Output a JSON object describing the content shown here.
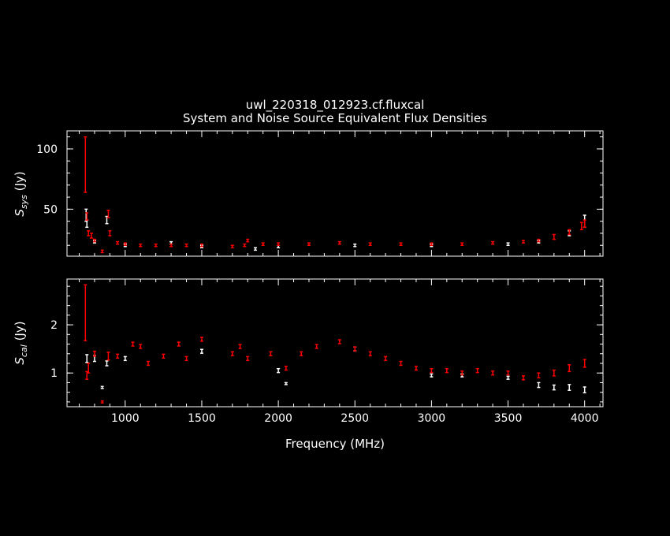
{
  "figure": {
    "title": "uwl_220318_012923.cf.fluxcal",
    "subtitle": "System and Noise Source Equivalent Flux Densities"
  },
  "chart_data": [
    {
      "type": "scatter",
      "panel": "top",
      "ylabel_main": "S",
      "ylabel_sub": "sys",
      "ylabel_unit": "(Jy)",
      "xlim": [
        620,
        4120
      ],
      "ylim": [
        11,
        115
      ],
      "yticks": [
        50,
        100
      ],
      "xticks": [
        1000,
        1500,
        2000,
        2500,
        3000,
        3500,
        4000
      ],
      "x_ticklabels_shown": false,
      "series": [
        {
          "color": "#ff0000",
          "points": [
            [
              740,
              87,
              23
            ],
            [
              750,
              44,
              3
            ],
            [
              760,
              30,
              2
            ],
            [
              780,
              28,
              2
            ],
            [
              800,
              24,
              1
            ],
            [
              850,
              15,
              1
            ],
            [
              890,
              46,
              3
            ],
            [
              900,
              30,
              2
            ],
            [
              950,
              22,
              1
            ],
            [
              1000,
              21,
              1
            ],
            [
              1100,
              20,
              1
            ],
            [
              1200,
              20,
              1
            ],
            [
              1300,
              20,
              1
            ],
            [
              1400,
              20,
              1
            ],
            [
              1500,
              20,
              1
            ],
            [
              1700,
              19,
              1
            ],
            [
              1780,
              20,
              1
            ],
            [
              1800,
              24,
              1
            ],
            [
              1900,
              21,
              1
            ],
            [
              2000,
              21,
              1
            ],
            [
              2200,
              21,
              1
            ],
            [
              2400,
              22,
              1
            ],
            [
              2600,
              21,
              1
            ],
            [
              2800,
              21,
              1
            ],
            [
              3000,
              21,
              1
            ],
            [
              3200,
              21,
              1
            ],
            [
              3400,
              22,
              1
            ],
            [
              3600,
              23,
              1
            ],
            [
              3700,
              24,
              1
            ],
            [
              3800,
              27,
              2
            ],
            [
              3900,
              31,
              2
            ],
            [
              3980,
              36,
              3
            ],
            [
              4000,
              38,
              3
            ]
          ]
        },
        {
          "color": "#ffffff",
          "points": [
            [
              745,
              45,
              5
            ],
            [
              750,
              38,
              3
            ],
            [
              800,
              23,
              1
            ],
            [
              880,
              41,
              3
            ],
            [
              1000,
              20,
              1
            ],
            [
              1300,
              22,
              1
            ],
            [
              1500,
              19,
              1
            ],
            [
              1850,
              17,
              1
            ],
            [
              2000,
              19,
              1
            ],
            [
              2500,
              20,
              1
            ],
            [
              3000,
              20,
              1
            ],
            [
              3500,
              21,
              1
            ],
            [
              3700,
              23,
              1
            ],
            [
              3900,
              30,
              2
            ],
            [
              4000,
              40,
              5
            ]
          ]
        }
      ]
    },
    {
      "type": "scatter",
      "panel": "bottom",
      "ylabel_main": "S",
      "ylabel_sub": "cal",
      "ylabel_unit": "(Jy)",
      "xlabel": "Frequency (MHz)",
      "xlim": [
        620,
        4120
      ],
      "ylim": [
        0.3,
        2.95
      ],
      "yticks": [
        1,
        2
      ],
      "xticks": [
        1000,
        1500,
        2000,
        2500,
        3000,
        3500,
        4000
      ],
      "series": [
        {
          "color": "#ff0000",
          "points": [
            [
              740,
              2.25,
              0.58
            ],
            [
              750,
              0.95,
              0.08
            ],
            [
              760,
              1.1,
              0.1
            ],
            [
              800,
              1.4,
              0.05
            ],
            [
              850,
              0.4,
              0.02
            ],
            [
              890,
              1.35,
              0.08
            ],
            [
              950,
              1.35,
              0.04
            ],
            [
              1050,
              1.6,
              0.04
            ],
            [
              1100,
              1.55,
              0.04
            ],
            [
              1150,
              1.2,
              0.04
            ],
            [
              1250,
              1.35,
              0.04
            ],
            [
              1350,
              1.6,
              0.04
            ],
            [
              1400,
              1.3,
              0.04
            ],
            [
              1500,
              1.7,
              0.04
            ],
            [
              1700,
              1.4,
              0.04
            ],
            [
              1750,
              1.55,
              0.04
            ],
            [
              1800,
              1.3,
              0.04
            ],
            [
              1950,
              1.4,
              0.04
            ],
            [
              2050,
              1.1,
              0.04
            ],
            [
              2150,
              1.4,
              0.04
            ],
            [
              2250,
              1.55,
              0.04
            ],
            [
              2400,
              1.65,
              0.04
            ],
            [
              2500,
              1.5,
              0.04
            ],
            [
              2600,
              1.4,
              0.04
            ],
            [
              2700,
              1.3,
              0.04
            ],
            [
              2800,
              1.2,
              0.04
            ],
            [
              2900,
              1.1,
              0.04
            ],
            [
              3000,
              1.05,
              0.04
            ],
            [
              3100,
              1.05,
              0.04
            ],
            [
              3200,
              1.0,
              0.04
            ],
            [
              3300,
              1.05,
              0.04
            ],
            [
              3400,
              1.0,
              0.04
            ],
            [
              3500,
              1.0,
              0.04
            ],
            [
              3600,
              0.9,
              0.04
            ],
            [
              3700,
              0.95,
              0.05
            ],
            [
              3800,
              1.0,
              0.06
            ],
            [
              3900,
              1.1,
              0.07
            ],
            [
              4000,
              1.2,
              0.08
            ]
          ]
        },
        {
          "color": "#ffffff",
          "points": [
            [
              750,
              1.3,
              0.08
            ],
            [
              800,
              1.3,
              0.06
            ],
            [
              850,
              0.7,
              0.02
            ],
            [
              880,
              1.2,
              0.05
            ],
            [
              1000,
              1.3,
              0.04
            ],
            [
              1500,
              1.45,
              0.04
            ],
            [
              2000,
              1.05,
              0.04
            ],
            [
              2050,
              0.78,
              0.02
            ],
            [
              2500,
              1.5,
              0.04
            ],
            [
              3000,
              0.95,
              0.03
            ],
            [
              3200,
              0.95,
              0.03
            ],
            [
              3500,
              0.9,
              0.03
            ],
            [
              3700,
              0.75,
              0.05
            ],
            [
              3800,
              0.7,
              0.05
            ],
            [
              3900,
              0.7,
              0.06
            ],
            [
              4000,
              0.65,
              0.06
            ]
          ]
        }
      ]
    }
  ]
}
